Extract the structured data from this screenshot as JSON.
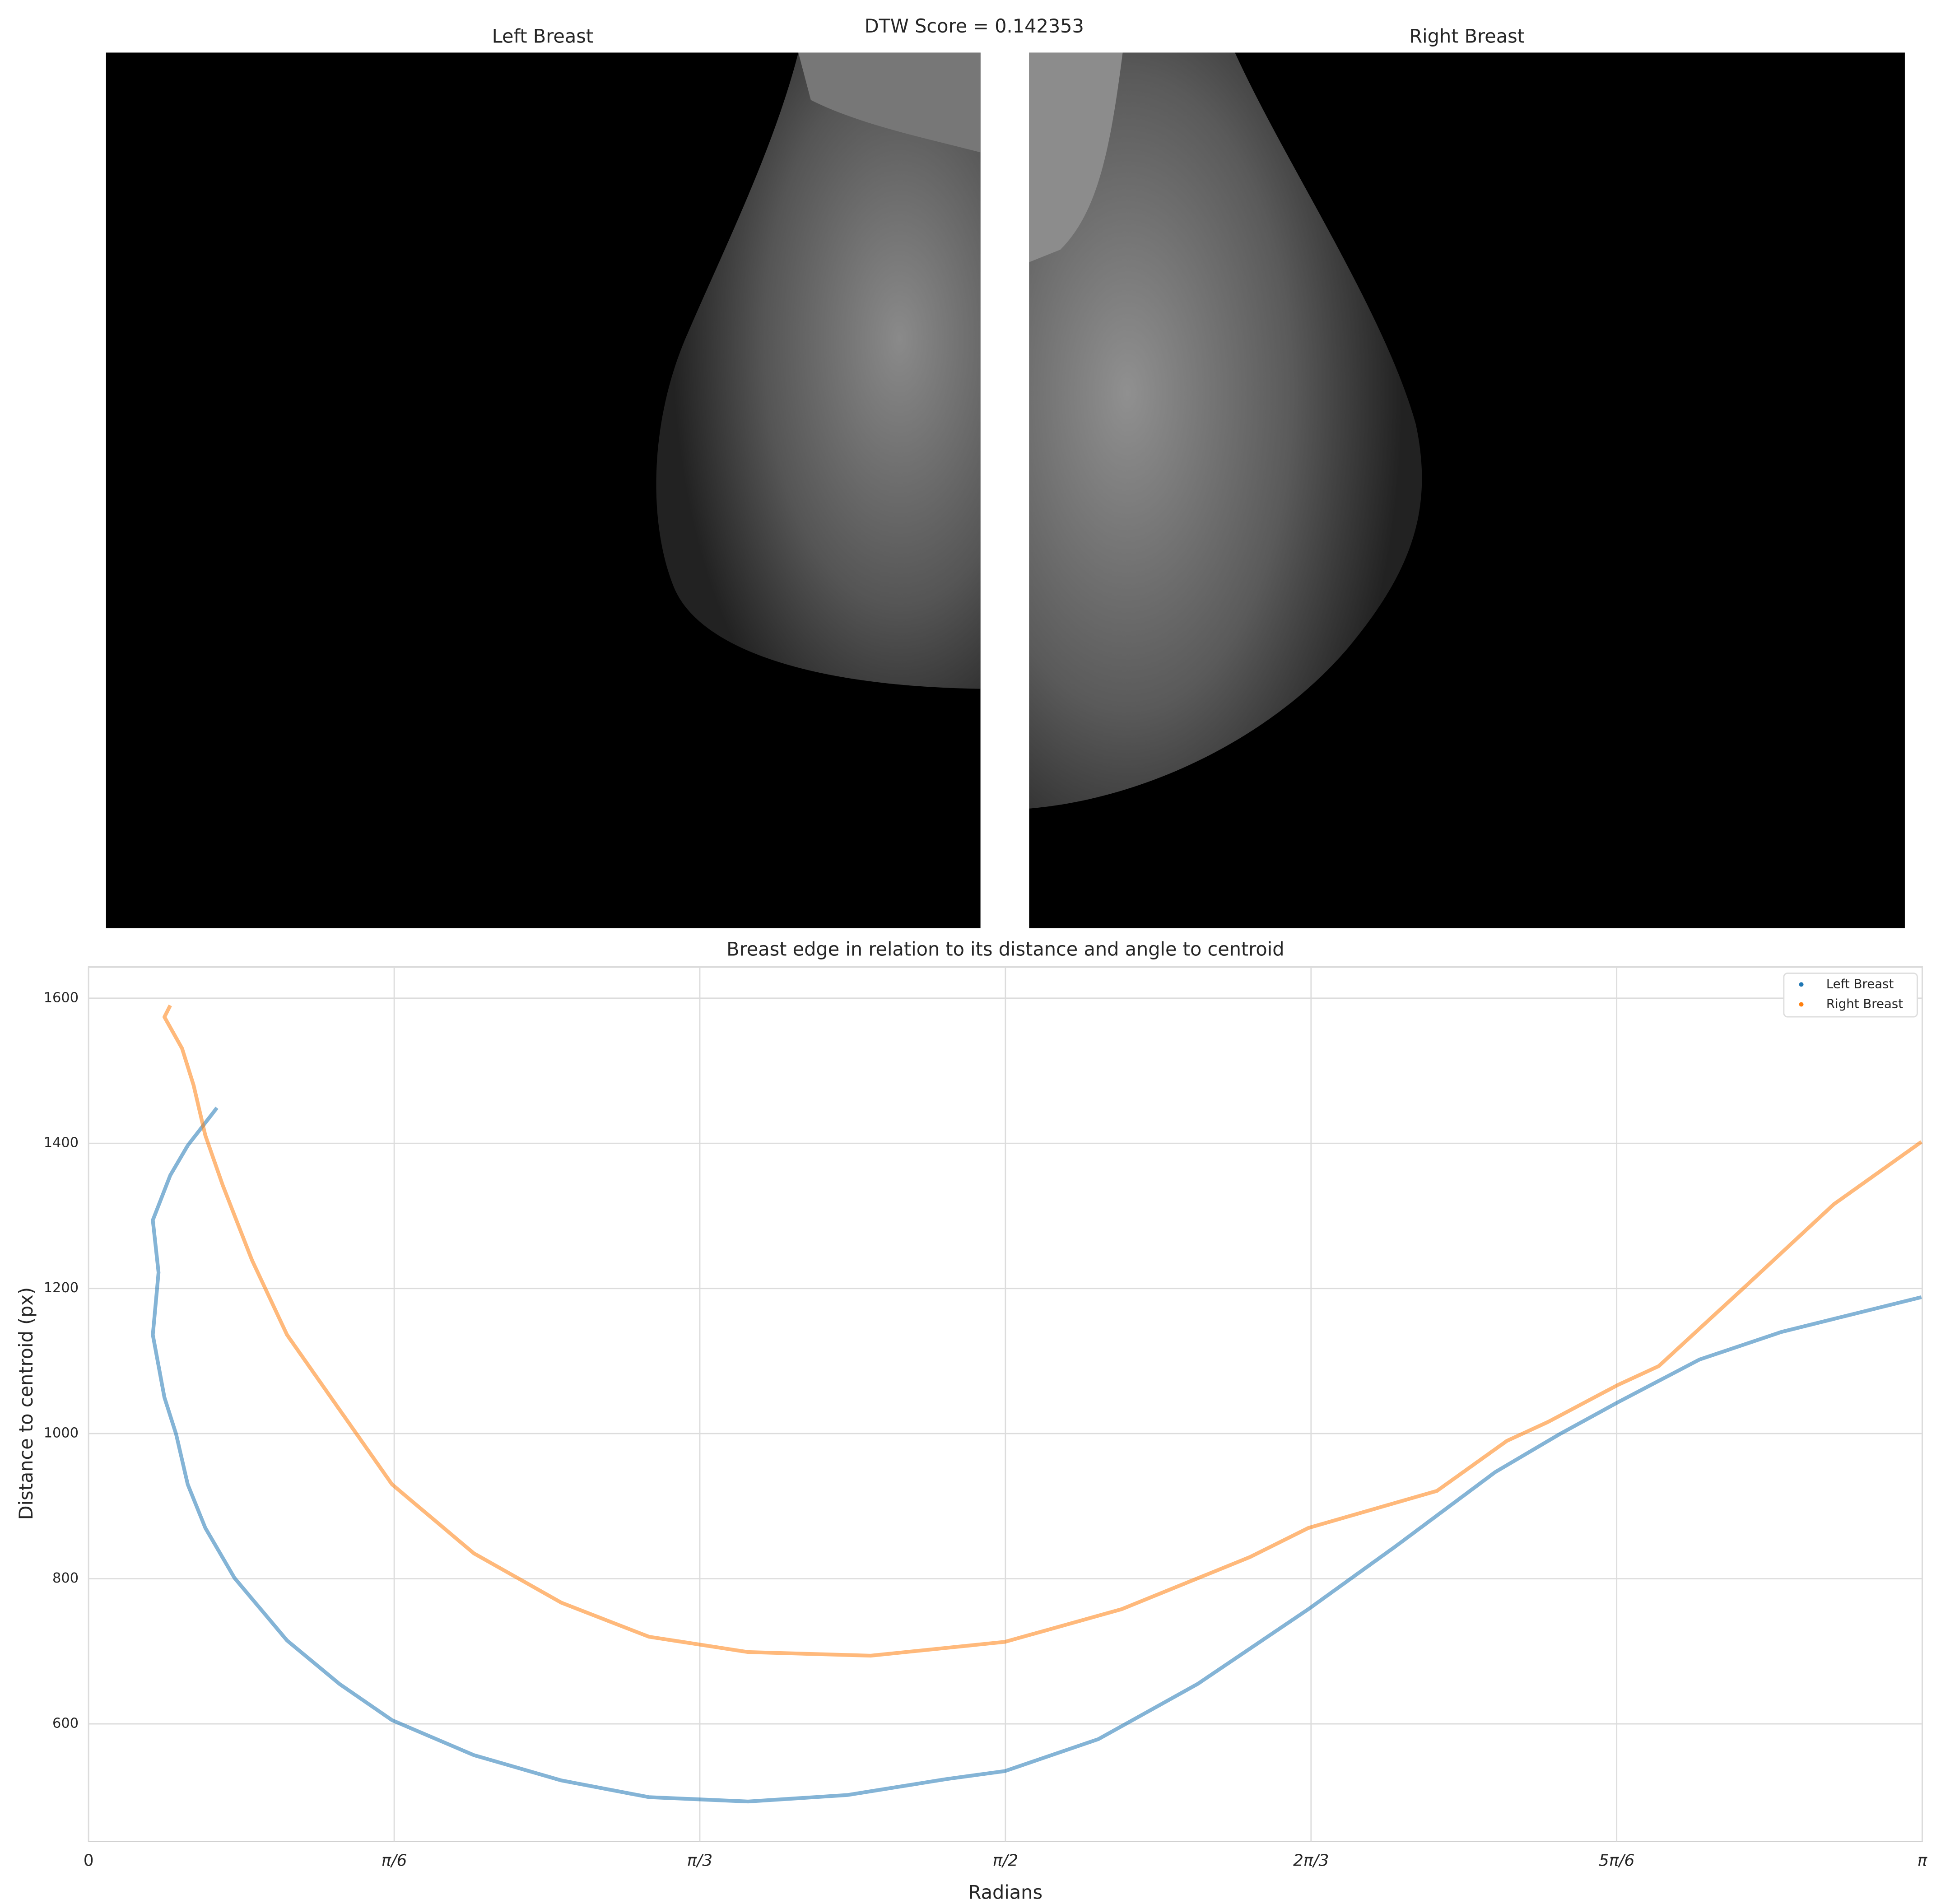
{
  "chart_data": [
    {
      "type": "image",
      "title": "DTW Score = 0.142353",
      "panels": [
        "Left Breast",
        "Right Breast"
      ]
    },
    {
      "type": "line",
      "title": "Breast edge in relation to its distance and angle to centroid",
      "x_label": "Radians",
      "y_label": "Distance to centroid (px)",
      "xlim": [
        0,
        3.1416
      ],
      "ylim": [
        438,
        1643
      ],
      "xticks": [
        0,
        {
          "value": 0.5236,
          "label": "π/6"
        },
        {
          "value": 1.0472,
          "label": "π/3"
        },
        {
          "value": 1.5708,
          "label": "π/2"
        },
        {
          "value": 2.0944,
          "label": "2π/3"
        },
        {
          "value": 2.618,
          "label": "5π/6"
        },
        {
          "value": 3.1416,
          "label": "π"
        }
      ],
      "yticks": [
        600,
        800,
        1000,
        1200,
        1400,
        1600
      ],
      "grid": true,
      "legend": "upper right",
      "series": [
        {
          "name": "Left Breast",
          "color": "#1f77b4",
          "x": [
            0.22,
            0.17,
            0.14,
            0.11,
            0.12,
            0.11,
            0.13,
            0.15,
            0.17,
            0.2,
            0.25,
            0.34,
            0.43,
            0.52,
            0.66,
            0.81,
            0.96,
            1.13,
            1.3,
            1.47,
            1.57,
            1.73,
            1.9,
            2.09,
            2.24,
            2.41,
            2.52,
            2.62,
            2.76,
            2.9,
            3.01,
            3.14
          ],
          "values": [
            1449,
            1397,
            1356,
            1294,
            1222,
            1136,
            1050,
            999,
            930,
            870,
            801,
            715,
            655,
            605,
            557,
            522,
            499,
            493,
            502,
            524,
            535,
            579,
            655,
            758,
            845,
            947,
            999,
            1043,
            1102,
            1140,
            1162,
            1188
          ]
        },
        {
          "name": "Right Breast",
          "color": "#ff7f0e",
          "x": [
            0.14,
            0.13,
            0.16,
            0.18,
            0.2,
            0.23,
            0.28,
            0.34,
            0.43,
            0.52,
            0.66,
            0.81,
            0.96,
            1.13,
            1.34,
            1.57,
            1.77,
            1.99,
            2.09,
            2.31,
            2.43,
            2.5,
            2.62,
            2.69,
            2.84,
            2.99,
            3.14
          ],
          "values": [
            1590,
            1574,
            1531,
            1480,
            1411,
            1342,
            1239,
            1136,
            1033,
            930,
            835,
            767,
            720,
            699,
            694,
            713,
            758,
            830,
            870,
            921,
            990,
            1016,
            1067,
            1093,
            1204,
            1316,
            1402
          ]
        }
      ]
    }
  ]
}
